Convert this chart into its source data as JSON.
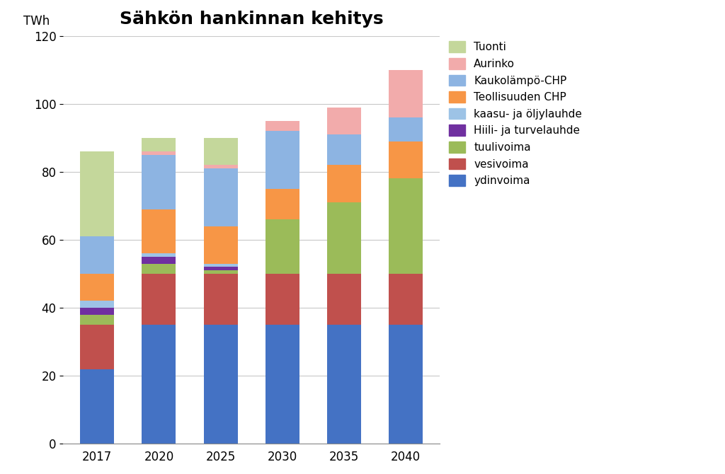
{
  "title": "Sähkön hankinnan kehitys",
  "ylabel": "TWh",
  "years": [
    "2017",
    "2020",
    "2025",
    "2030",
    "2035",
    "2040"
  ],
  "series": [
    {
      "name": "ydinvoima",
      "color": "#4472C4",
      "values": [
        22,
        35,
        35,
        35,
        35,
        35
      ]
    },
    {
      "name": "vesivoima",
      "color": "#C0504D",
      "values": [
        13,
        15,
        15,
        15,
        15,
        15
      ]
    },
    {
      "name": "tuulivoima",
      "color": "#9BBB59",
      "values": [
        3,
        3,
        1,
        16,
        21,
        28
      ]
    },
    {
      "name": "Hiili- ja turvelauhde",
      "color": "#7030A0",
      "values": [
        2,
        2,
        1,
        0,
        0,
        0
      ]
    },
    {
      "name": "kaasu- ja öljylauhde",
      "color": "#9DC3E6",
      "values": [
        2,
        1,
        1,
        0,
        0,
        0
      ]
    },
    {
      "name": "Teollisuuden CHP",
      "color": "#F79646",
      "values": [
        8,
        13,
        11,
        9,
        11,
        11
      ]
    },
    {
      "name": "Kaukolämpö-CHP",
      "color": "#8DB4E2",
      "values": [
        11,
        16,
        17,
        17,
        9,
        7
      ]
    },
    {
      "name": "Aurinko",
      "color": "#F2ABAB",
      "values": [
        0,
        1,
        1,
        3,
        8,
        14
      ]
    },
    {
      "name": "Tuonti",
      "color": "#C4D79B",
      "values": [
        25,
        4,
        8,
        0,
        0,
        0
      ]
    }
  ],
  "ylim": [
    0,
    120
  ],
  "yticks": [
    0,
    20,
    40,
    60,
    80,
    100,
    120
  ],
  "background_color": "#FFFFFF",
  "grid_color": "#C8C8C8",
  "title_fontsize": 18,
  "axis_fontsize": 12,
  "tick_fontsize": 12,
  "legend_fontsize": 11,
  "bar_width": 0.55
}
